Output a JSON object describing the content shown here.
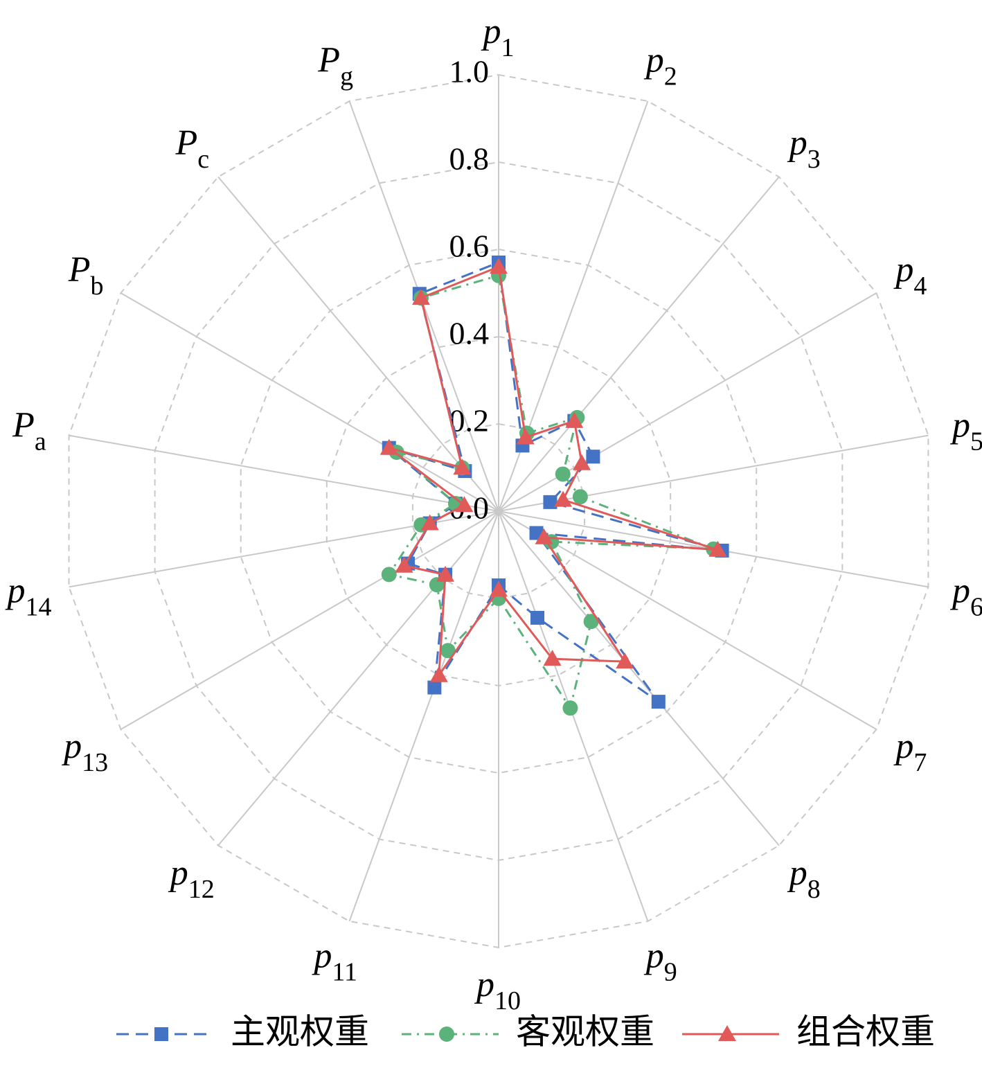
{
  "chart_data": {
    "type": "radar",
    "categories": [
      "p1",
      "p2",
      "p3",
      "p4",
      "p5",
      "p6",
      "p7",
      "p8",
      "p9",
      "p10",
      "p11",
      "p12",
      "p13",
      "p14",
      "Pa",
      "Pb",
      "Pc",
      "Pg"
    ],
    "rlim": [
      0,
      1.0
    ],
    "rticks": [
      {
        "value": 0,
        "label": "0.0"
      },
      {
        "value": 0.2,
        "label": "0.2"
      },
      {
        "value": 0.4,
        "label": "0.4"
      },
      {
        "value": 0.6,
        "label": "0.6"
      },
      {
        "value": 0.8,
        "label": "0.8"
      },
      {
        "value": 1.0,
        "label": "1.0"
      }
    ],
    "grid": true,
    "legend": "bottom",
    "series": [
      {
        "name": "主观权重",
        "color": "#4472c4",
        "marker": "square",
        "dash": "dashed",
        "values": [
          0.57,
          0.16,
          0.27,
          0.25,
          0.12,
          0.52,
          0.1,
          0.57,
          0.26,
          0.17,
          0.43,
          0.19,
          0.24,
          0.16,
          0.1,
          0.29,
          0.12,
          0.53
        ]
      },
      {
        "name": "客观权重",
        "color": "#5bb27a",
        "marker": "circle",
        "dash": "dashdot",
        "values": [
          0.54,
          0.19,
          0.28,
          0.17,
          0.19,
          0.5,
          0.14,
          0.33,
          0.48,
          0.2,
          0.34,
          0.22,
          0.29,
          0.18,
          0.1,
          0.27,
          0.13,
          0.52
        ]
      },
      {
        "name": "组合权重",
        "color": "#e05a5a",
        "marker": "triangle",
        "dash": "solid",
        "values": [
          0.56,
          0.18,
          0.27,
          0.22,
          0.15,
          0.51,
          0.12,
          0.45,
          0.36,
          0.18,
          0.4,
          0.19,
          0.25,
          0.16,
          0.08,
          0.29,
          0.13,
          0.52
        ]
      }
    ]
  }
}
